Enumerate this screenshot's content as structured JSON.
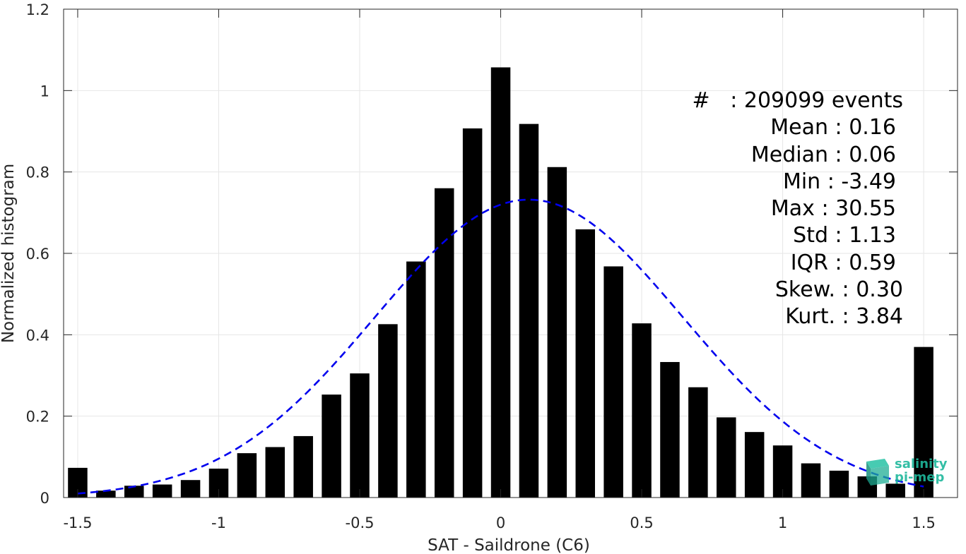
{
  "chart_data": {
    "type": "bar",
    "xlabel": "SAT - Saildrone (C6)",
    "ylabel": "Normalized histogram",
    "xlim": [
      -1.55,
      1.62
    ],
    "ylim": [
      0,
      1.2
    ],
    "xticks": [
      -1.5,
      -1,
      -0.5,
      0,
      0.5,
      1,
      1.5
    ],
    "xtick_labels": [
      "-1.5",
      "-1",
      "-0.5",
      "0",
      "0.5",
      "1",
      "1.5"
    ],
    "yticks": [
      0,
      0.2,
      0.4,
      0.6,
      0.8,
      1,
      1.2
    ],
    "ytick_labels": [
      "0",
      "0.2",
      "0.4",
      "0.6",
      "0.8",
      "1",
      "1.2"
    ],
    "grid": true,
    "bar_color": "#000000",
    "fit_color": "#0000ee",
    "bins": [
      -1.5,
      -1.4,
      -1.3,
      -1.2,
      -1.1,
      -1.0,
      -0.9,
      -0.8,
      -0.7,
      -0.6,
      -0.5,
      -0.4,
      -0.3,
      -0.2,
      -0.1,
      0.0,
      0.1,
      0.2,
      0.3,
      0.4,
      0.5,
      0.6,
      0.7,
      0.8,
      0.9,
      1.0,
      1.1,
      1.2,
      1.3,
      1.4,
      1.5
    ],
    "values": [
      0.073,
      0.017,
      0.029,
      0.032,
      0.043,
      0.071,
      0.109,
      0.124,
      0.151,
      0.253,
      0.305,
      0.426,
      0.58,
      0.76,
      0.907,
      1.057,
      0.918,
      0.812,
      0.659,
      0.568,
      0.428,
      0.333,
      0.271,
      0.197,
      0.161,
      0.128,
      0.084,
      0.066,
      0.052,
      0.034,
      0.37
    ],
    "fit": {
      "type": "normal",
      "mean": 0.1,
      "sd": 0.545,
      "peak": 0.732,
      "x_range": [
        -1.5,
        1.5
      ]
    }
  },
  "stats": [
    "#   : 209099 events",
    "Mean : 0.16",
    "Median : 0.06",
    "Min : -3.49",
    "Max : 30.55",
    "Std : 1.13",
    "IQR : 0.59",
    "Skew. : 0.30",
    "Kurt. : 3.84"
  ],
  "logo": {
    "line1": "salinity",
    "line2": "pi-mep",
    "color": "#1fb89c"
  }
}
